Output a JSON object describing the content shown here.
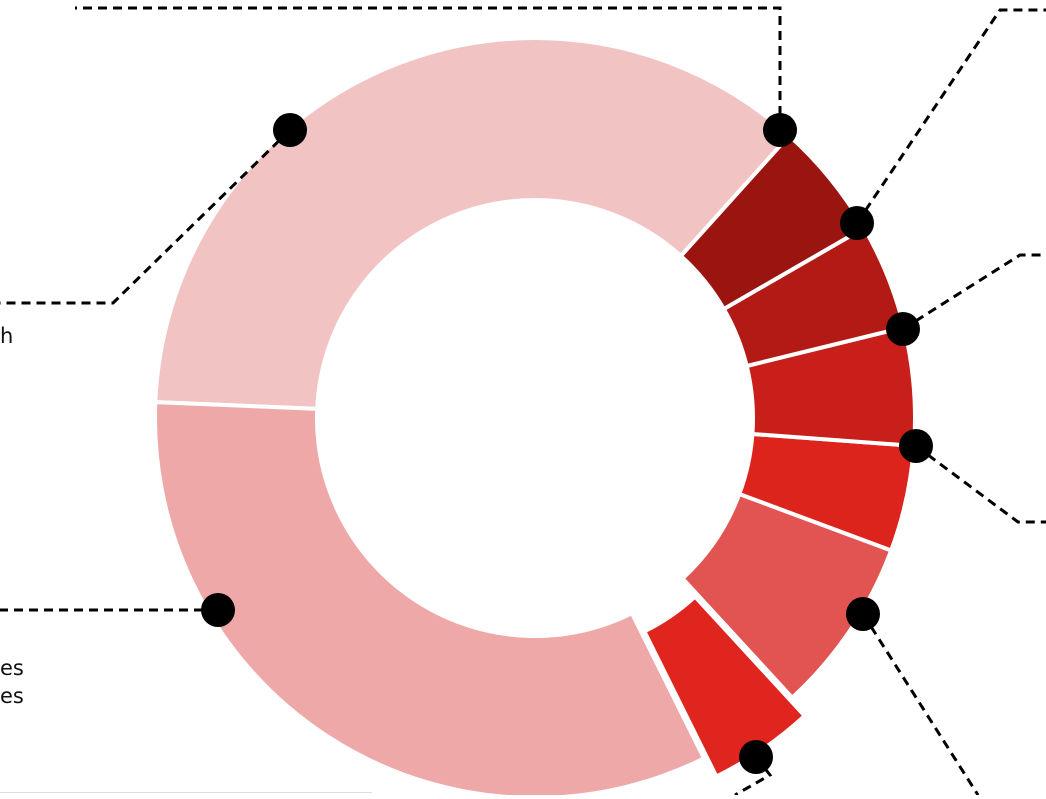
{
  "chart_data": {
    "type": "pie",
    "donut": true,
    "title": "",
    "legend": "none",
    "slices": [
      {
        "label": "",
        "value": 36.0,
        "color": "#F1C3C3"
      },
      {
        "label": "",
        "value": 33.0,
        "color": "#EEA8A8"
      },
      {
        "label": "",
        "value": 4.5,
        "color": "#E0241E",
        "exploded": true
      },
      {
        "label": "",
        "value": 7.5,
        "color": "#E25451"
      },
      {
        "label": "",
        "value": 4.5,
        "color": "#DD241C"
      },
      {
        "label": "",
        "value": 5.0,
        "color": "#C81F1A"
      },
      {
        "label": "",
        "value": 4.5,
        "color": "#B31A15"
      },
      {
        "label": "",
        "value": 5.0,
        "color": "#9B1510"
      }
    ]
  },
  "fragments": {
    "left_upper": "h",
    "left_lower": [
      "es",
      "es"
    ]
  }
}
